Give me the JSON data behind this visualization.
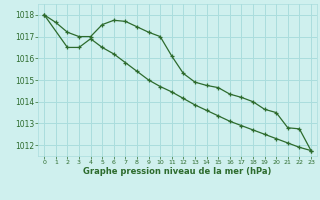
{
  "line1_x": [
    0,
    1,
    2,
    3,
    4,
    5,
    6,
    7,
    8,
    9,
    10,
    11,
    12,
    13,
    14,
    15,
    16,
    17,
    18,
    19,
    20,
    21,
    22,
    23
  ],
  "line1_y": [
    1018.0,
    1017.65,
    1017.2,
    1017.0,
    1017.0,
    1017.55,
    1017.75,
    1017.7,
    1017.45,
    1017.2,
    1017.0,
    1016.1,
    1015.3,
    1014.9,
    1014.75,
    1014.65,
    1014.35,
    1014.2,
    1014.0,
    1013.65,
    1013.5,
    1012.8,
    1012.75,
    1011.75
  ],
  "line2_x": [
    0,
    2,
    3,
    4,
    5,
    6,
    7,
    8,
    9,
    10,
    11,
    12,
    13,
    14,
    15,
    16,
    17,
    18,
    19,
    20,
    21,
    22,
    23
  ],
  "line2_y": [
    1018.0,
    1016.5,
    1016.5,
    1016.9,
    1016.5,
    1016.2,
    1015.8,
    1015.4,
    1015.0,
    1014.7,
    1014.45,
    1014.15,
    1013.85,
    1013.6,
    1013.35,
    1013.1,
    1012.9,
    1012.7,
    1012.5,
    1012.3,
    1012.1,
    1011.9,
    1011.75
  ],
  "bg_color": "#cff0ee",
  "grid_color": "#aadddd",
  "line_color": "#2d6b2d",
  "xlabel": "Graphe pression niveau de la mer (hPa)",
  "ylim": [
    1011.5,
    1018.5
  ],
  "xlim": [
    -0.5,
    23.5
  ],
  "yticks": [
    1012,
    1013,
    1014,
    1015,
    1016,
    1017,
    1018
  ],
  "xticks": [
    0,
    1,
    2,
    3,
    4,
    5,
    6,
    7,
    8,
    9,
    10,
    11,
    12,
    13,
    14,
    15,
    16,
    17,
    18,
    19,
    20,
    21,
    22,
    23
  ]
}
